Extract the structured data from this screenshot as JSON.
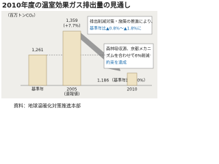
{
  "chart_data": {
    "type": "bar",
    "title": "2010年度の温室効果ガス排出量の見通し",
    "unit_label": "（百万トンCO₂）",
    "categories": [
      "基準年",
      "2005",
      "2010"
    ],
    "category_note": "(速報値)",
    "values": [
      1261,
      1359,
      1186
    ],
    "value_labels": [
      "1,261",
      "1,359",
      "1,186"
    ],
    "color": "#efe3c4",
    "ylim": [
      1135,
      1440
    ],
    "annotations": {
      "change_2005": "(+7.7%)",
      "change_2010": "（基準年比▲6.0%）",
      "box1": [
        "排出削減対策・施策の推進により、",
        "基準年比▲0.8%～▲1.8%に"
      ],
      "box2": [
        "森林吸収源、京都メカニ",
        "ズムを合わせて6%削減",
        "約束を達成"
      ]
    },
    "source": "資料：地球温暖化対策推進本部"
  }
}
